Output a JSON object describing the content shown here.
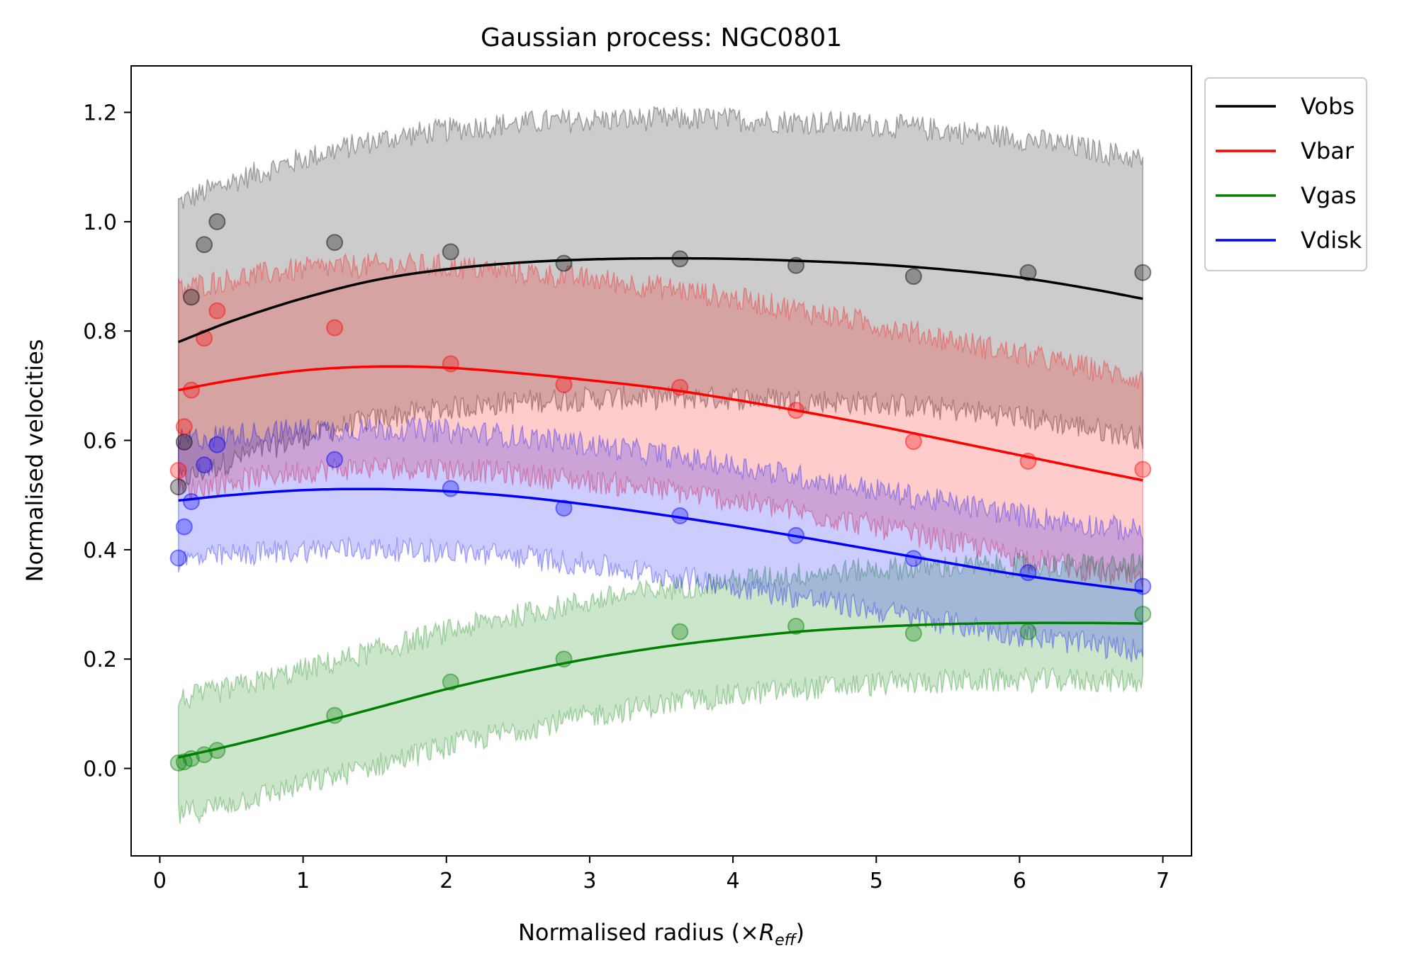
{
  "chart_data": {
    "type": "line",
    "title": "Gaussian process: NGC0801",
    "xlabel": "Normalised radius (×",
    "xlabel_sub": "R",
    "xlabel_subscript": "eff",
    "xlabel_end": ")",
    "ylabel": "Normalised velocities",
    "xlim": [
      -0.2,
      7.2
    ],
    "ylim": [
      -0.16,
      1.285
    ],
    "xticks": [
      0,
      1,
      2,
      3,
      4,
      5,
      6,
      7
    ],
    "xtick_labels": [
      "0",
      "1",
      "2",
      "3",
      "4",
      "5",
      "6",
      "7"
    ],
    "yticks": [
      0.0,
      0.2,
      0.4,
      0.6,
      0.8,
      1.0,
      1.2
    ],
    "ytick_labels": [
      "0.0",
      "0.2",
      "0.4",
      "0.6",
      "0.8",
      "1.0",
      "1.2"
    ],
    "legend_position": "outside-top-right",
    "series": [
      {
        "name": "Vobs",
        "color": "#000000",
        "points_x": [
          0.13,
          0.17,
          0.22,
          0.31,
          0.4,
          1.22,
          2.03,
          2.82,
          3.63,
          4.44,
          5.26,
          6.06,
          6.86
        ],
        "points_y": [
          0.515,
          0.597,
          0.862,
          0.958,
          1.0,
          0.962,
          0.945,
          0.924,
          0.932,
          0.92,
          0.9,
          0.907,
          0.907
        ],
        "fit_x": [
          0.13,
          0.5,
          1.0,
          1.5,
          2.0,
          2.5,
          3.0,
          3.5,
          4.0,
          4.5,
          5.0,
          5.5,
          6.0,
          6.5,
          6.86
        ],
        "fit_y": [
          0.78,
          0.818,
          0.86,
          0.893,
          0.913,
          0.925,
          0.931,
          0.933,
          0.932,
          0.928,
          0.922,
          0.912,
          0.898,
          0.877,
          0.859
        ],
        "band_halfwidth": 0.255
      },
      {
        "name": "Vbar",
        "color": "#ff0000",
        "points_x": [
          0.13,
          0.17,
          0.22,
          0.31,
          0.4,
          1.22,
          2.03,
          2.82,
          3.63,
          4.44,
          5.26,
          6.06,
          6.86
        ],
        "points_y": [
          0.545,
          0.625,
          0.692,
          0.787,
          0.837,
          0.806,
          0.74,
          0.702,
          0.697,
          0.655,
          0.598,
          0.562,
          0.547
        ],
        "fit_x": [
          0.13,
          0.5,
          1.0,
          1.5,
          2.0,
          2.5,
          3.0,
          3.5,
          4.0,
          4.5,
          5.0,
          5.5,
          6.0,
          6.5,
          6.86
        ],
        "fit_y": [
          0.692,
          0.71,
          0.728,
          0.735,
          0.733,
          0.723,
          0.71,
          0.695,
          0.675,
          0.652,
          0.627,
          0.6,
          0.573,
          0.546,
          0.527
        ],
        "band_halfwidth": 0.185
      },
      {
        "name": "Vgas",
        "color": "#008000",
        "points_x": [
          0.13,
          0.17,
          0.22,
          0.31,
          0.4,
          1.22,
          2.03,
          2.82,
          3.63,
          4.44,
          5.26,
          6.06,
          6.86
        ],
        "points_y": [
          0.01,
          0.012,
          0.018,
          0.025,
          0.033,
          0.097,
          0.158,
          0.2,
          0.25,
          0.26,
          0.247,
          0.25,
          0.282
        ],
        "fit_x": [
          0.13,
          0.5,
          1.0,
          1.5,
          2.0,
          2.5,
          3.0,
          3.5,
          4.0,
          4.5,
          5.0,
          5.5,
          6.0,
          6.5,
          6.86
        ],
        "fit_y": [
          0.02,
          0.042,
          0.075,
          0.11,
          0.145,
          0.175,
          0.201,
          0.222,
          0.238,
          0.251,
          0.259,
          0.264,
          0.266,
          0.266,
          0.265
        ],
        "band_halfwidth": 0.105
      },
      {
        "name": "Vdisk",
        "color": "#0000ff",
        "points_x": [
          0.13,
          0.17,
          0.22,
          0.31,
          0.4,
          1.22,
          2.03,
          2.82,
          3.63,
          4.44,
          5.26,
          6.06,
          6.86
        ],
        "points_y": [
          0.385,
          0.442,
          0.488,
          0.555,
          0.592,
          0.565,
          0.512,
          0.476,
          0.462,
          0.426,
          0.384,
          0.358,
          0.333
        ],
        "fit_x": [
          0.13,
          0.5,
          1.0,
          1.5,
          2.0,
          2.5,
          3.0,
          3.5,
          4.0,
          4.5,
          5.0,
          5.5,
          6.0,
          6.5,
          6.86
        ],
        "fit_y": [
          0.49,
          0.5,
          0.509,
          0.511,
          0.507,
          0.497,
          0.482,
          0.464,
          0.444,
          0.422,
          0.399,
          0.376,
          0.354,
          0.336,
          0.324
        ],
        "band_halfwidth": 0.11
      }
    ]
  }
}
